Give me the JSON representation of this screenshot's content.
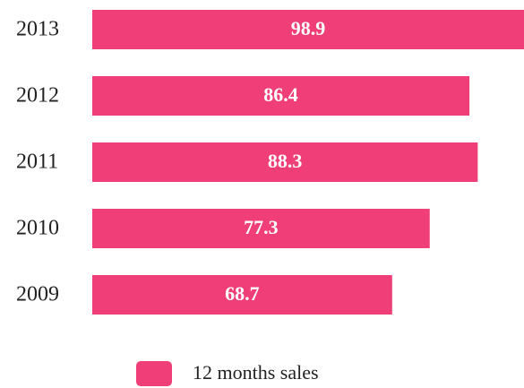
{
  "chart_data": {
    "type": "bar",
    "orientation": "horizontal",
    "categories": [
      "2013",
      "2012",
      "2011",
      "2010",
      "2009"
    ],
    "series": [
      {
        "name": "12 months sales",
        "color": "#f03f78",
        "values": [
          98.9,
          86.4,
          88.3,
          77.3,
          68.7
        ]
      }
    ],
    "legend": "bottom"
  }
}
